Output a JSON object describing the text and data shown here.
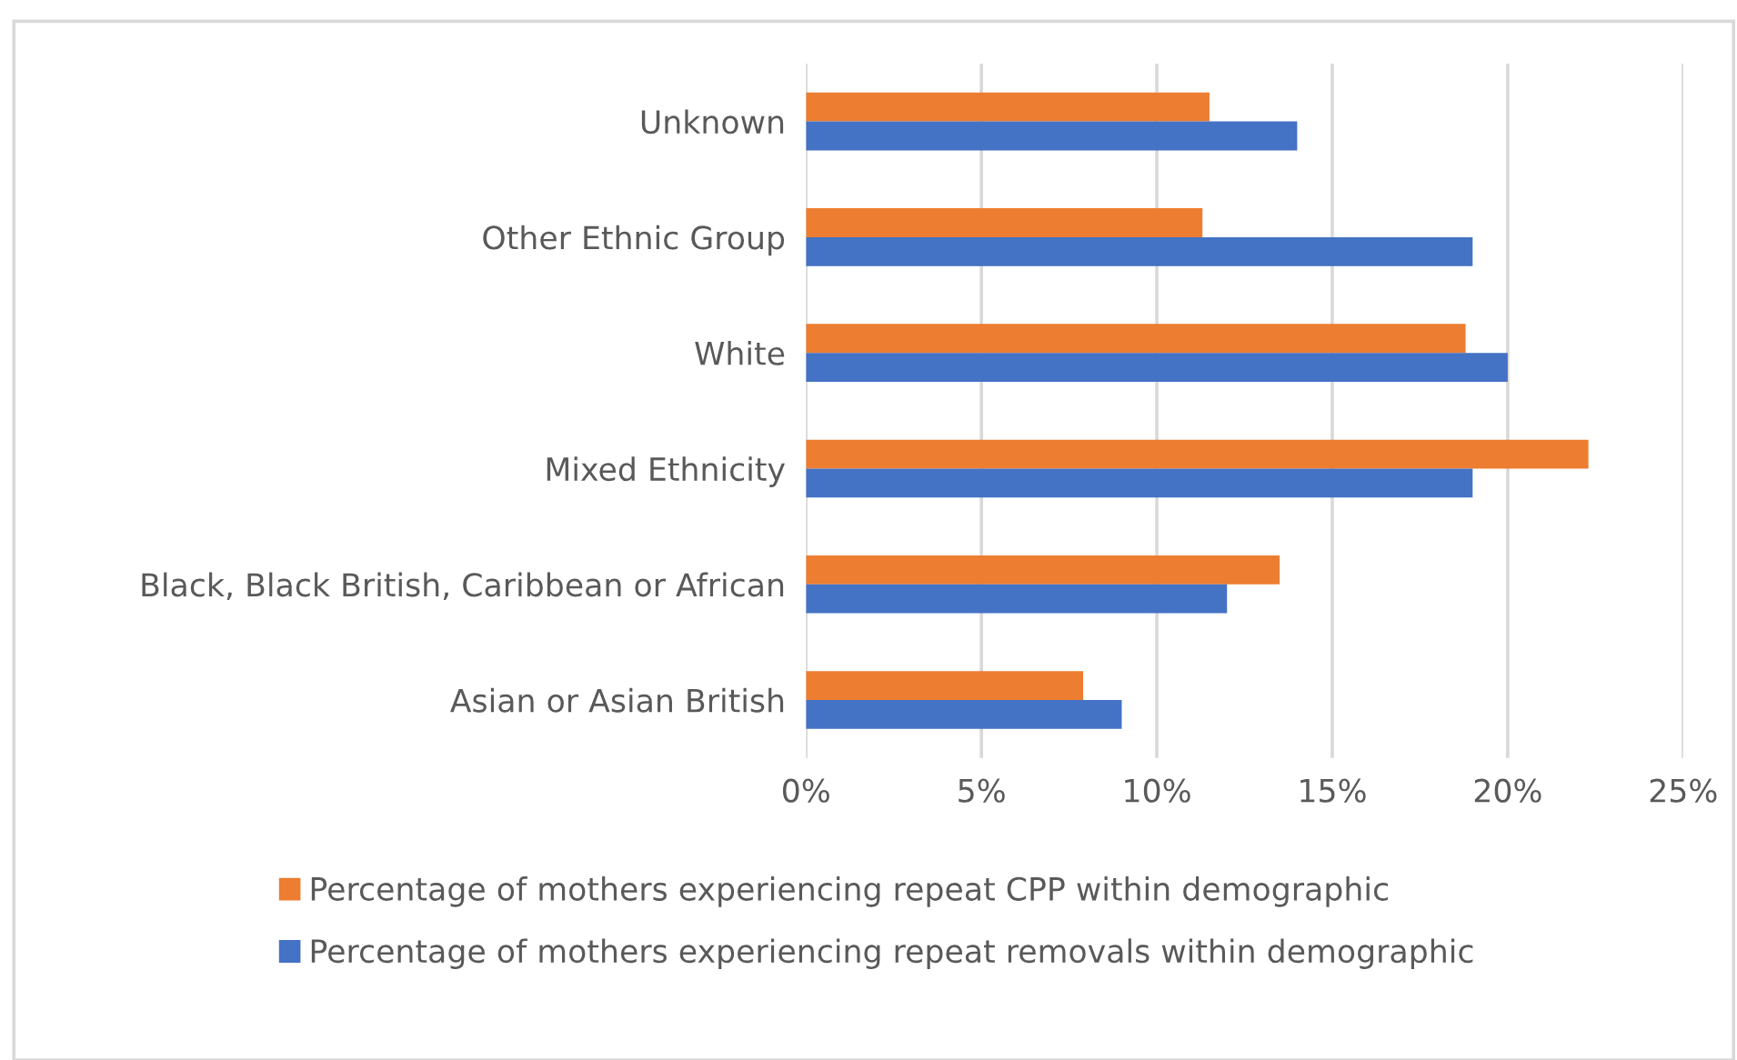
{
  "chart_data": {
    "type": "bar",
    "orientation": "horizontal",
    "categories": [
      "Unknown",
      "Other Ethnic Group",
      "White",
      "Mixed Ethnicity",
      "Black, Black British, Caribbean or African",
      "Asian or Asian British"
    ],
    "series": [
      {
        "name": "Percentage of mothers experiencing repeat CPP within demographic",
        "color": "#ed7d31",
        "values": [
          11.5,
          11.3,
          18.8,
          22.3,
          13.5,
          7.9
        ]
      },
      {
        "name": "Percentage of mothers experiencing repeat removals within demographic",
        "color": "#4472c4",
        "values": [
          14.0,
          19.0,
          20.0,
          19.0,
          12.0,
          9.0
        ]
      }
    ],
    "xlim": [
      0,
      25
    ],
    "xticks": [
      {
        "value": 0,
        "label": "0%"
      },
      {
        "value": 5,
        "label": "5%"
      },
      {
        "value": 10,
        "label": "10%"
      },
      {
        "value": 15,
        "label": "15%"
      },
      {
        "value": 20,
        "label": "20%"
      },
      {
        "value": 25,
        "label": "25%"
      }
    ],
    "grid": "x",
    "legend": "bottom"
  }
}
